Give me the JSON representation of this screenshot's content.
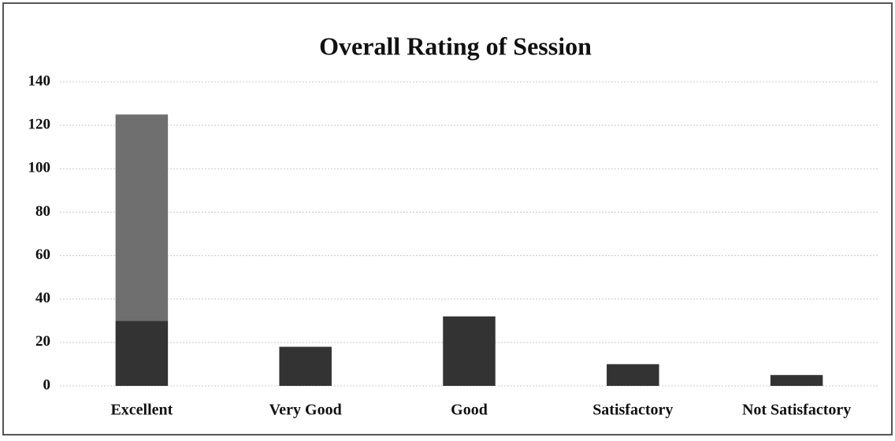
{
  "chart_data": {
    "type": "stacked_bar",
    "title": "Overall Rating of Session",
    "categories": [
      "Excellent",
      "Very Good",
      "Good",
      "Satisfactory",
      "Not Satisfactory"
    ],
    "series": [
      {
        "color": "#333333",
        "values": [
          30,
          18,
          32,
          10,
          5
        ]
      },
      {
        "color": "#6f6f6f",
        "values": [
          95,
          null,
          null,
          null,
          null
        ]
      }
    ],
    "ylim": [
      0,
      140
    ],
    "yticks": [
      0,
      20,
      40,
      60,
      80,
      100,
      120,
      140
    ],
    "grid": true
  }
}
